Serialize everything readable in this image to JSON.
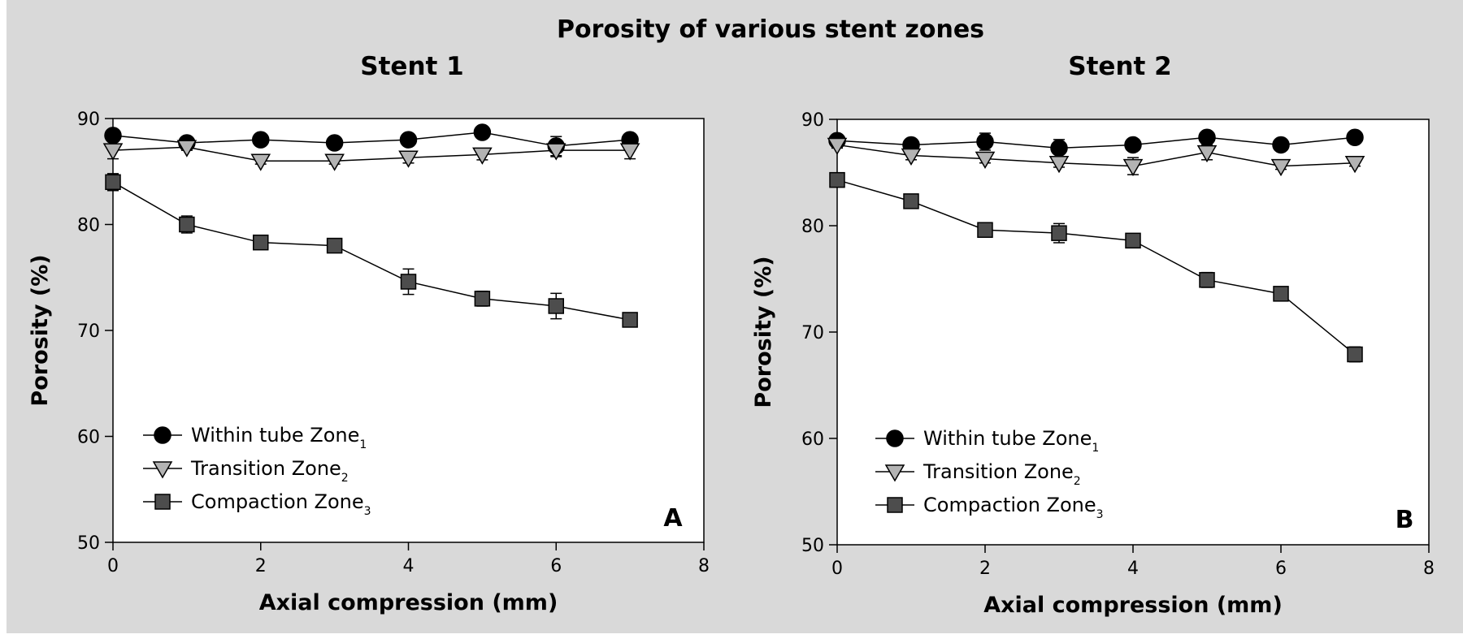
{
  "figure": {
    "title": "Porosity of various stent zones",
    "background": "#d9d9d9",
    "plot_background": "#ffffff"
  },
  "chart_data": [
    {
      "type": "line",
      "title": "Stent 1",
      "panel_label": "A",
      "xlabel": "Axial compression (mm)",
      "ylabel": "Porosity (%)",
      "xlim": [
        0,
        8
      ],
      "ylim": [
        50,
        90
      ],
      "xticks": [
        "0",
        "2",
        "4",
        "6",
        "8"
      ],
      "yticks": [
        "50",
        "60",
        "70",
        "80",
        "90"
      ],
      "grid": false,
      "legend_position": "bottom-left",
      "x": [
        0,
        1,
        2,
        3,
        4,
        5,
        6,
        7
      ],
      "series": [
        {
          "name": "Within tube Zone",
          "subscript": "1",
          "marker": "circle",
          "color": "#000000",
          "values": [
            88.4,
            87.7,
            88.0,
            87.7,
            88.0,
            88.7,
            87.4,
            88.0
          ],
          "errors": [
            0.4,
            0.3,
            0.3,
            0.3,
            0.3,
            0.3,
            0.9,
            0.3
          ]
        },
        {
          "name": "Transition Zone",
          "subscript": "2",
          "marker": "triangle-down",
          "color": "#b3b3b3",
          "values": [
            87.0,
            87.3,
            86.0,
            86.0,
            86.3,
            86.6,
            87.0,
            87.0
          ],
          "errors": [
            0.8,
            0.3,
            0.3,
            0.3,
            0.5,
            0.5,
            0.6,
            0.8
          ]
        },
        {
          "name": "Compaction Zone",
          "subscript": "3",
          "marker": "square",
          "color": "#4d4d4d",
          "values": [
            84.0,
            80.0,
            78.3,
            78.0,
            74.6,
            73.0,
            72.3,
            71.0
          ],
          "errors": [
            0.8,
            0.8,
            0.4,
            0.6,
            1.2,
            0.7,
            1.2,
            0.6
          ]
        }
      ]
    },
    {
      "type": "line",
      "title": "Stent 2",
      "panel_label": "B",
      "xlabel": "Axial compression (mm)",
      "ylabel": "Porosity (%)",
      "xlim": [
        0,
        8
      ],
      "ylim": [
        50,
        90
      ],
      "xticks": [
        "0",
        "2",
        "4",
        "6",
        "8"
      ],
      "yticks": [
        "50",
        "60",
        "70",
        "80",
        "90"
      ],
      "grid": false,
      "legend_position": "bottom-left",
      "x": [
        0,
        1,
        2,
        3,
        4,
        5,
        6,
        7
      ],
      "series": [
        {
          "name": "Within tube Zone",
          "subscript": "1",
          "marker": "circle",
          "color": "#000000",
          "values": [
            88.0,
            87.6,
            87.9,
            87.3,
            87.6,
            88.3,
            87.6,
            88.3
          ],
          "errors": [
            0.3,
            0.3,
            0.8,
            0.8,
            0.3,
            0.3,
            0.3,
            0.3
          ]
        },
        {
          "name": "Transition Zone",
          "subscript": "2",
          "marker": "triangle-down",
          "color": "#b3b3b3",
          "values": [
            87.6,
            86.6,
            86.3,
            85.9,
            85.6,
            86.9,
            85.6,
            85.9
          ],
          "errors": [
            0.3,
            0.4,
            0.4,
            0.4,
            0.8,
            0.7,
            0.3,
            0.3
          ]
        },
        {
          "name": "Compaction Zone",
          "subscript": "3",
          "marker": "square",
          "color": "#4d4d4d",
          "values": [
            84.3,
            82.3,
            79.6,
            79.3,
            78.6,
            74.9,
            73.6,
            67.9
          ],
          "errors": [
            0.4,
            0.4,
            0.4,
            0.9,
            0.4,
            0.7,
            0.4,
            0.7
          ]
        }
      ]
    }
  ]
}
